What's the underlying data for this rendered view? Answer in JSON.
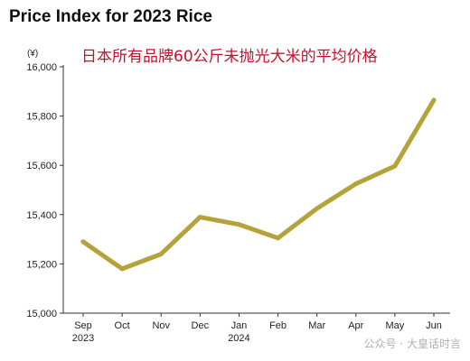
{
  "title": "Price Index for 2023 Rice",
  "subtitle": "日本所有品牌60公斤未抛光大米的平均价格",
  "watermark": "公众号 · 大皇话时言",
  "chart_data": {
    "type": "line",
    "title": "Price Index for 2023 Rice",
    "subtitle": "日本所有品牌60公斤未抛光大米的平均价格",
    "ylabel": "(¥)",
    "ylim": [
      15000,
      16000
    ],
    "yticks": [
      15000,
      15200,
      15400,
      15600,
      15800,
      16000
    ],
    "ytick_labels": [
      "15,000",
      "15,200",
      "15,400",
      "15,600",
      "15,800",
      "16,000"
    ],
    "categories": [
      "Sep",
      "Oct",
      "Nov",
      "Dec",
      "Jan",
      "Feb",
      "Mar",
      "Apr",
      "May",
      "Jun"
    ],
    "year_labels": [
      {
        "category": "Sep",
        "label": "2023"
      },
      {
        "category": "Jan",
        "label": "2024"
      }
    ],
    "series": [
      {
        "values": [
          15290,
          15180,
          15240,
          15390,
          15360,
          15305,
          15425,
          15525,
          15597,
          15865
        ],
        "color": "#b5a23a"
      }
    ],
    "grid": false,
    "legend": "none"
  }
}
